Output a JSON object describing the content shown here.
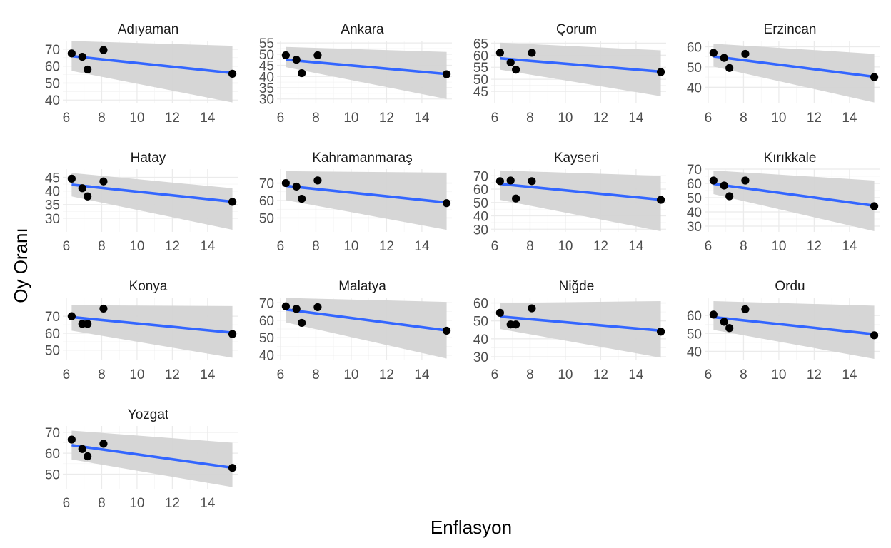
{
  "chart_data": {
    "type": "scatter",
    "xlabel": "Enflasyon",
    "ylabel": "Oy Oranı",
    "xlim": [
      5.8,
      15.7
    ],
    "x_ticks": [
      6,
      8,
      10,
      12,
      14
    ],
    "x": [
      6.3,
      6.9,
      7.2,
      8.1,
      15.4
    ],
    "smooth": "lm",
    "grid": "on",
    "facets": [
      {
        "title": "Adıyaman",
        "y": [
          67.5,
          65.5,
          58.0,
          69.5,
          55.5
        ],
        "ylim": [
          38,
          75
        ],
        "y_ticks": [
          40,
          50,
          60,
          70
        ],
        "ci": [
          [
            74.8,
            57.2
          ],
          [
            72.0,
            38.6
          ]
        ]
      },
      {
        "title": "Ankara",
        "y": [
          49.5,
          47.5,
          41.5,
          49.5,
          41.0
        ],
        "ylim": [
          28,
          56
        ],
        "y_ticks": [
          30,
          35,
          40,
          45,
          50,
          55
        ],
        "ci": [
          [
            53.2,
            44.2
          ],
          [
            51.0,
            30.0
          ]
        ]
      },
      {
        "title": "Çorum",
        "y": [
          61.0,
          57.0,
          54.0,
          61.0,
          53.0
        ],
        "ylim": [
          40,
          66
        ],
        "y_ticks": [
          45,
          50,
          55,
          60,
          65
        ],
        "ci": [
          [
            65.2,
            54.0
          ],
          [
            62.0,
            43.0
          ]
        ]
      },
      {
        "title": "Erzincan",
        "y": [
          57.0,
          54.5,
          49.5,
          56.5,
          45.0
        ],
        "ylim": [
          32,
          63
        ],
        "y_ticks": [
          40,
          50,
          60
        ],
        "ci": [
          [
            61.5,
            50.2
          ],
          [
            56.5,
            32.5
          ]
        ]
      },
      {
        "title": "Hatay",
        "y": [
          44.5,
          41.0,
          38.0,
          43.5,
          36.0
        ],
        "ylim": [
          25,
          48
        ],
        "y_ticks": [
          30,
          35,
          40,
          45
        ],
        "ci": [
          [
            46.6,
            38.0
          ],
          [
            41.0,
            25.8
          ]
        ]
      },
      {
        "title": "Kahramanmaraş",
        "y": [
          70.0,
          68.0,
          61.0,
          71.5,
          58.5
        ],
        "ylim": [
          42,
          78
        ],
        "y_ticks": [
          50,
          60,
          70
        ],
        "ci": [
          [
            76.8,
            60.2
          ],
          [
            76.0,
            43.2
          ]
        ]
      },
      {
        "title": "Kayseri",
        "y": [
          66.0,
          66.5,
          53.0,
          66.0,
          52.0
        ],
        "ylim": [
          28,
          75
        ],
        "y_ticks": [
          30,
          40,
          50,
          60,
          70
        ],
        "ci": [
          [
            74.0,
            52.0
          ],
          [
            70.0,
            28.5
          ]
        ]
      },
      {
        "title": "Kırıkkale",
        "y": [
          62.0,
          58.5,
          51.0,
          62.0,
          44.0
        ],
        "ylim": [
          26,
          70
        ],
        "y_ticks": [
          30,
          40,
          50,
          60,
          70
        ],
        "ci": [
          [
            69.0,
            52.5
          ],
          [
            62.0,
            26.5
          ]
        ]
      },
      {
        "title": "Konya",
        "y": [
          70.0,
          65.5,
          65.5,
          74.5,
          59.5
        ],
        "ylim": [
          44,
          81
        ],
        "y_ticks": [
          50,
          60,
          70
        ],
        "ci": [
          [
            76.5,
            61.5
          ],
          [
            76.0,
            45.5
          ]
        ]
      },
      {
        "title": "Malatya",
        "y": [
          68.0,
          66.5,
          58.5,
          67.5,
          54.0
        ],
        "ylim": [
          37,
          73
        ],
        "y_ticks": [
          40,
          50,
          60,
          70
        ],
        "ci": [
          [
            72.8,
            58.8
          ],
          [
            70.5,
            38.0
          ]
        ]
      },
      {
        "title": "Niğde",
        "y": [
          54.5,
          48.0,
          48.0,
          57.0,
          44.0
        ],
        "ylim": [
          28,
          63
        ],
        "y_ticks": [
          30,
          40,
          50,
          60
        ],
        "ci": [
          [
            60.0,
            45.5
          ],
          [
            61.0,
            29.5
          ]
        ]
      },
      {
        "title": "Ordu",
        "y": [
          60.5,
          56.5,
          53.0,
          63.5,
          49.0
        ],
        "ylim": [
          35,
          70
        ],
        "y_ticks": [
          40,
          50,
          60
        ],
        "ci": [
          [
            68.0,
            52.0
          ],
          [
            65.5,
            35.8
          ]
        ]
      },
      {
        "title": "Yozgat",
        "y": [
          66.5,
          62.0,
          58.5,
          64.5,
          53.0
        ],
        "ylim": [
          43,
          73
        ],
        "y_ticks": [
          50,
          60,
          70
        ],
        "ci": [
          [
            70.8,
            57.0
          ],
          [
            65.0,
            43.8
          ]
        ]
      }
    ]
  }
}
